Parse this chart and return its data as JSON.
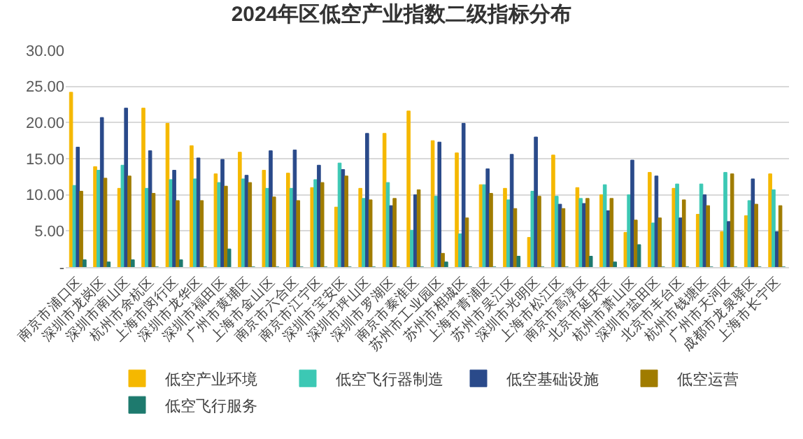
{
  "chart_data": {
    "type": "bar",
    "title": "2024年区低空产业指数二级指标分布",
    "categories": [
      "南京市浦口区",
      "深圳市龙岗区",
      "深圳市南山区",
      "杭州市余杭区",
      "上海市闵行区",
      "深圳市龙华区",
      "深圳市福田区",
      "广州市黄埔区",
      "上海市金山区",
      "南京市六合区",
      "南京市江宁区",
      "深圳市宝安区",
      "深圳市坪山区",
      "深圳市罗湖区",
      "南京市秦淮区",
      "苏州市工业园区",
      "苏州市相城区",
      "上海市青浦区",
      "苏州市吴江区",
      "深圳市光明区",
      "上海市松江区",
      "南京市高淳区",
      "北京市延庆区",
      "杭州市萧山区",
      "深圳市盐田区",
      "北京市丰台区",
      "杭州市钱塘区",
      "广州市天河区",
      "成都市龙泉驿区",
      "上海市长宁区"
    ],
    "series": [
      {
        "name": "低空产业环境",
        "color": "#f5b800",
        "values": [
          24.2,
          13.9,
          10.9,
          22.0,
          19.9,
          16.8,
          12.9,
          15.9,
          13.4,
          13.0,
          11.0,
          8.3,
          10.9,
          18.5,
          21.6,
          17.5,
          15.8,
          11.4,
          10.9,
          4.1,
          15.5,
          11.0,
          10.0,
          4.8,
          13.1,
          10.9,
          7.3,
          4.9,
          7.1,
          12.9
        ]
      },
      {
        "name": "低空飞行器制造",
        "color": "#3cc8b4",
        "values": [
          11.3,
          13.4,
          14.1,
          10.9,
          12.1,
          12.2,
          11.7,
          12.2,
          10.9,
          10.9,
          12.1,
          14.4,
          9.5,
          11.7,
          5.1,
          9.8,
          4.6,
          11.4,
          9.3,
          10.5,
          9.8,
          9.5,
          11.4,
          10.0,
          6.1,
          11.5,
          11.5,
          13.1,
          9.2,
          10.7
        ]
      },
      {
        "name": "低空基础设施",
        "color": "#2a4a8a",
        "values": [
          16.6,
          20.7,
          22.0,
          16.1,
          13.4,
          15.1,
          14.9,
          12.7,
          16.1,
          16.2,
          14.1,
          13.5,
          18.5,
          8.5,
          10.0,
          17.3,
          19.9,
          13.6,
          15.6,
          18.0,
          8.7,
          8.8,
          7.8,
          14.8,
          12.6,
          6.8,
          10.0,
          6.3,
          12.2,
          4.9
        ]
      },
      {
        "name": "低空运营",
        "color": "#a07c00",
        "values": [
          10.5,
          12.3,
          12.6,
          10.2,
          9.2,
          9.2,
          11.2,
          11.7,
          9.7,
          9.2,
          11.7,
          12.6,
          9.3,
          9.5,
          10.7,
          1.9,
          6.8,
          10.2,
          8.1,
          9.8,
          8.1,
          9.5,
          9.5,
          6.5,
          6.8,
          9.3,
          8.5,
          12.9,
          8.7,
          8.5
        ]
      },
      {
        "name": "低空飞行服务",
        "color": "#1e7a6e",
        "values": [
          1.0,
          0.7,
          1.0,
          0,
          1.0,
          0,
          2.5,
          0,
          0,
          0,
          0,
          0,
          0,
          0,
          0,
          0.7,
          0,
          0,
          1.5,
          0,
          0,
          1.5,
          0.7,
          3.1,
          0,
          0,
          0,
          0,
          0,
          0
        ]
      }
    ],
    "ylim": [
      0,
      30
    ],
    "yticks": [
      {
        "value": 0,
        "label": "-"
      },
      {
        "value": 5,
        "label": "5.00"
      },
      {
        "value": 10,
        "label": "10.00"
      },
      {
        "value": 15,
        "label": "15.00"
      },
      {
        "value": 20,
        "label": "20.00"
      },
      {
        "value": 25,
        "label": "25.00"
      },
      {
        "value": 30,
        "label": "30.00"
      }
    ],
    "grid": "y",
    "legend": "bottom"
  }
}
